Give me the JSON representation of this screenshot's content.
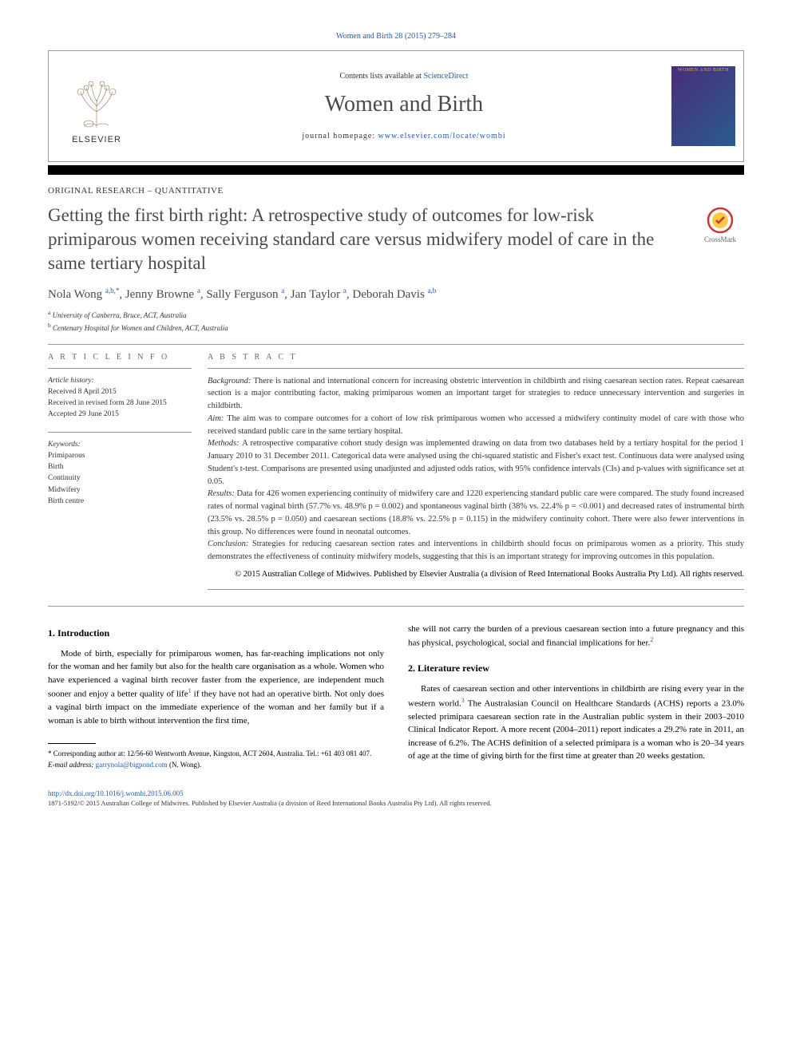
{
  "top_link": "Women and Birth 28 (2015) 279–284",
  "header": {
    "contents_prefix": "Contents lists available at ",
    "contents_link": "ScienceDirect",
    "journal": "Women and Birth",
    "homepage_prefix": "journal homepage: ",
    "homepage_url": "www.elsevier.com/locate/wombi",
    "elsevier": "ELSEVIER",
    "cover_label": "WOMEN AND BIRTH"
  },
  "article": {
    "section_type": "ORIGINAL RESEARCH – QUANTITATIVE",
    "title": "Getting the first birth right: A retrospective study of outcomes for low-risk primiparous women receiving standard care versus midwifery model of care in the same tertiary hospital",
    "crossmark": "CrossMark",
    "authors_html": "Nola Wong <sup>a,b,*</sup>, Jenny Browne <sup>a</sup>, Sally Ferguson <sup>a</sup>, Jan Taylor <sup>a</sup>, Deborah Davis <sup>a,b</sup>",
    "affiliations": {
      "a": "University of Canberra, Bruce, ACT, Australia",
      "b": "Centenary Hospital for Women and Children, ACT, Australia"
    }
  },
  "info": {
    "heading": "A R T I C L E   I N F O",
    "history_label": "Article history:",
    "history": [
      "Received 8 April 2015",
      "Received in revised form 28 June 2015",
      "Accepted 29 June 2015"
    ],
    "keywords_label": "Keywords:",
    "keywords": [
      "Primiparous",
      "Birth",
      "Continuity",
      "Midwifery",
      "Birth centre"
    ]
  },
  "abstract": {
    "heading": "A B S T R A C T",
    "paragraphs": [
      {
        "label": "Background:",
        "text": "There is national and international concern for increasing obstetric intervention in childbirth and rising caesarean section rates. Repeat caesarean section is a major contributing factor, making primiparous women an important target for strategies to reduce unnecessary intervention and surgeries in childbirth."
      },
      {
        "label": "Aim:",
        "text": "The aim was to compare outcomes for a cohort of low risk primiparous women who accessed a midwifery continuity model of care with those who received standard public care in the same tertiary hospital."
      },
      {
        "label": "Methods:",
        "text": "A retrospective comparative cohort study design was implemented drawing on data from two databases held by a tertiary hospital for the period 1 January 2010 to 31 December 2011. Categorical data were analysed using the chi-squared statistic and Fisher's exact test. Continuous data were analysed using Student's t-test. Comparisons are presented using unadjusted and adjusted odds ratios, with 95% confidence intervals (CIs) and p-values with significance set at 0.05."
      },
      {
        "label": "Results:",
        "text": "Data for 426 women experiencing continuity of midwifery care and 1220 experiencing standard public care were compared. The study found increased rates of normal vaginal birth (57.7% vs. 48.9% p = 0.002) and spontaneous vaginal birth (38% vs. 22.4% p = <0.001) and decreased rates of instrumental birth (23.5% vs. 28.5% p = 0.050) and caesarean sections (18.8% vs. 22.5% p = 0.115) in the midwifery continuity cohort. There were also fewer interventions in this group. No differences were found in neonatal outcomes."
      },
      {
        "label": "Conclusion:",
        "text": "Strategies for reducing caesarean section rates and interventions in childbirth should focus on primiparous women as a priority. This study demonstrates the effectiveness of continuity midwifery models, suggesting that this is an important strategy for improving outcomes in this population."
      }
    ],
    "copyright": "© 2015 Australian College of Midwives. Published by Elsevier Australia (a division of Reed International Books Australia Pty Ltd). All rights reserved."
  },
  "body": {
    "left": {
      "heading": "1. Introduction",
      "para": "Mode of birth, especially for primiparous women, has far-reaching implications not only for the woman and her family but also for the health care organisation as a whole. Women who have experienced a vaginal birth recover faster from the experience, are independent much sooner and enjoy a better quality of life<sup>1</sup> if they have not had an operative birth. Not only does a vaginal birth impact on the immediate experience of the woman and her family but if a woman is able to birth without intervention the first time,",
      "footnote_corr": "* Corresponding author at: 12/56-60 Wentworth Avenue, Kingston, ACT 2604, Australia. Tel.: +61 403 081 407.",
      "footnote_email_label": "E-mail address: ",
      "footnote_email": "garrynola@bigpond.com",
      "footnote_email_tail": " (N. Wong)."
    },
    "right": {
      "lead": "she will not carry the burden of a previous caesarean section into a future pregnancy and this has physical, psychological, social and financial implications for her.<sup>2</sup>",
      "heading": "2. Literature review",
      "para": "Rates of caesarean section and other interventions in childbirth are rising every year in the western world.<sup>3</sup> The Australasian Council on Healthcare Standards (ACHS) reports a 23.0% selected primipara caesarean section rate in the Australian public system in their 2003–2010 Clinical Indicator Report. A more recent (2004–2011) report indicates a 29.2% rate in 2011, an increase of 6.2%. The ACHS definition of a selected primipara is a woman who is 20–34 years of age at the time of giving birth for the first time at greater than 20 weeks gestation."
    }
  },
  "footer": {
    "doi": "http://dx.doi.org/10.1016/j.wombi.2015.06.005",
    "copy": "1871-5192/© 2015 Australian College of Midwives. Published by Elsevier Australia (a division of Reed International Books Australia Pty Ltd). All rights reserved."
  },
  "colors": {
    "link": "#2359a8",
    "title_gray": "#4a4a4a",
    "border": "#999999",
    "crossmark_outer": "#c83737",
    "crossmark_inner": "#ffc845"
  }
}
